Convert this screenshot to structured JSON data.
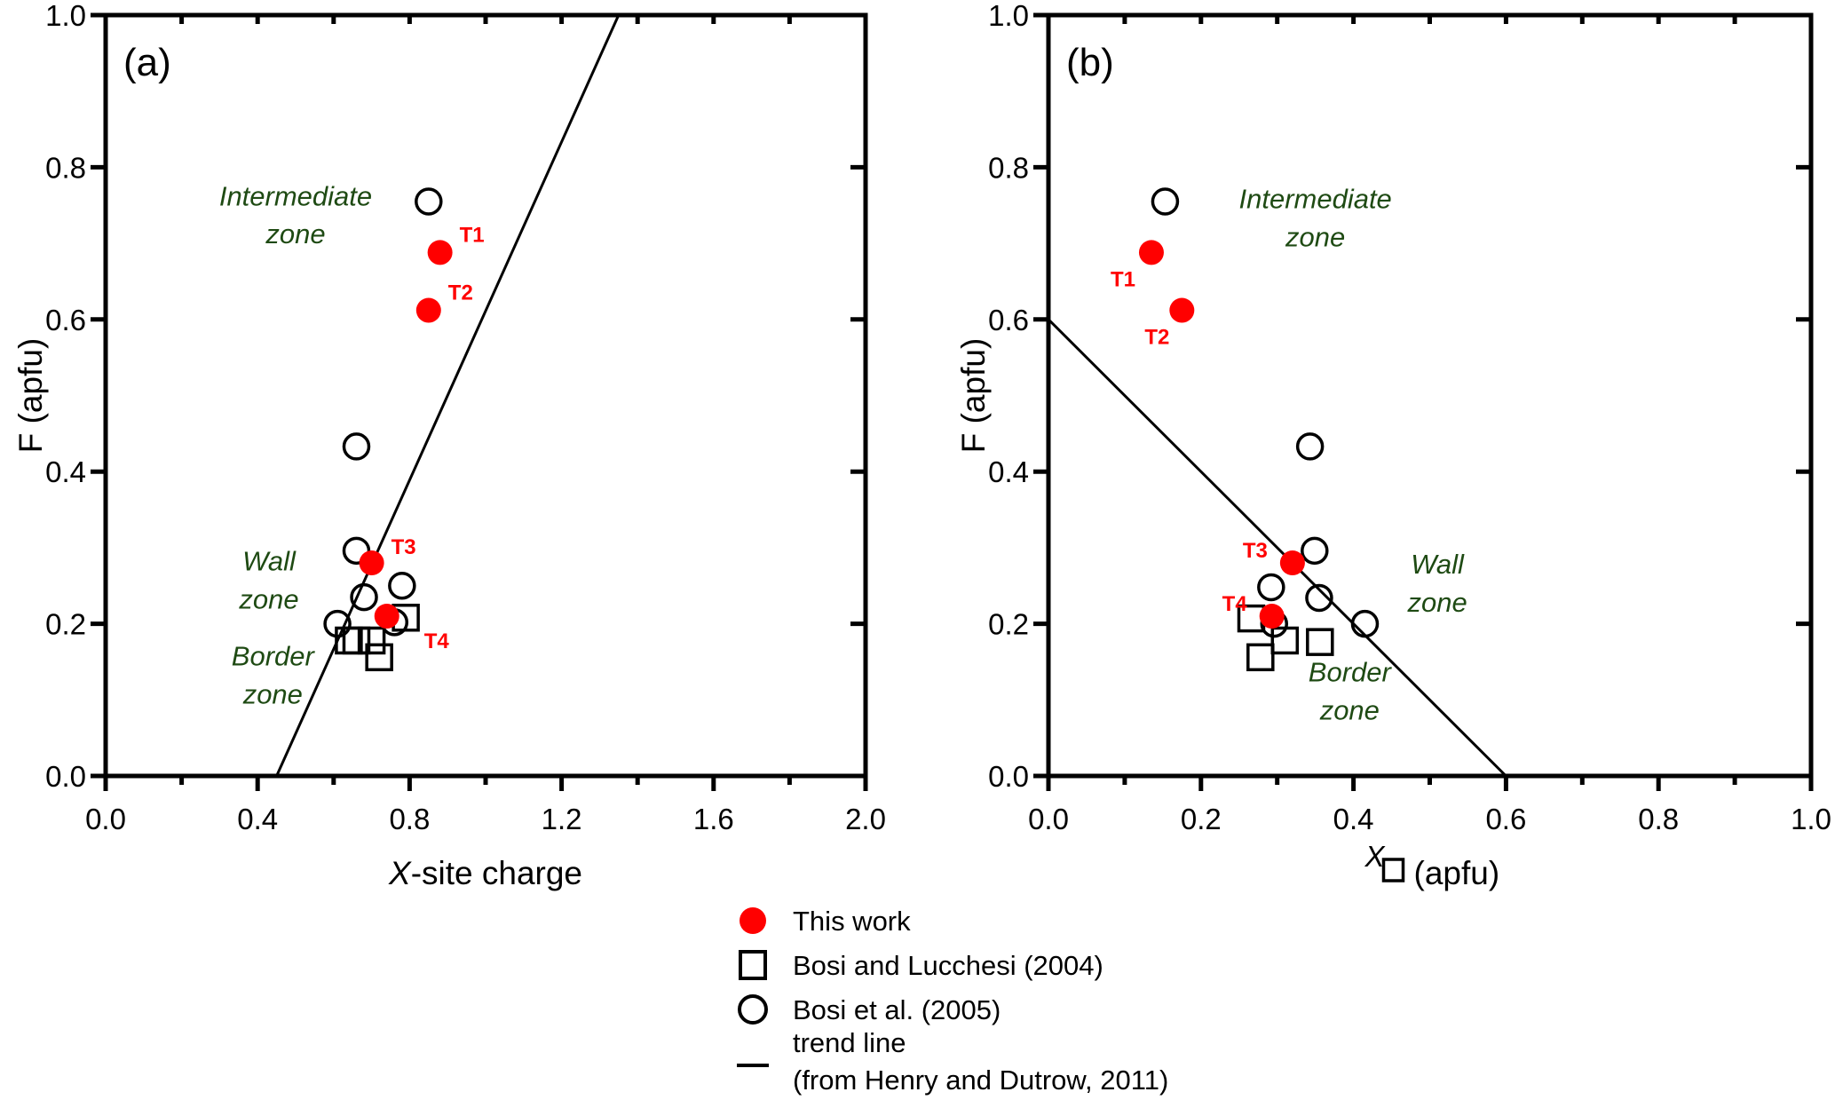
{
  "chart_data": [
    {
      "type": "scatter",
      "panel": "(a)",
      "xlabel_italic": "X",
      "xlabel_rest": "-site charge",
      "ylabel": "F (apfu)",
      "xlim": [
        0.0,
        2.0
      ],
      "ylim": [
        0.0,
        1.0
      ],
      "xticks": [
        "0.0",
        "0.4",
        "0.8",
        "1.2",
        "1.6",
        "2.0"
      ],
      "yticks": [
        "0.0",
        "0.2",
        "0.4",
        "0.6",
        "0.8",
        "1.0"
      ],
      "grid": false,
      "series": [
        {
          "name": "This work",
          "marker": "filled-circle",
          "color": "#ff0000",
          "points": [
            {
              "x": 0.88,
              "y": 0.688,
              "label": "T1"
            },
            {
              "x": 0.85,
              "y": 0.612,
              "label": "T2"
            },
            {
              "x": 0.7,
              "y": 0.28,
              "label": "T3"
            },
            {
              "x": 0.74,
              "y": 0.21,
              "label": "T4"
            }
          ]
        },
        {
          "name": "Bosi and Lucchesi (2004)",
          "marker": "open-square",
          "color": "#000000",
          "points": [
            {
              "x": 0.64,
              "y": 0.178
            },
            {
              "x": 0.7,
              "y": 0.178
            },
            {
              "x": 0.72,
              "y": 0.156
            },
            {
              "x": 0.79,
              "y": 0.208
            },
            {
              "x": 0.66,
              "y": 0.178
            }
          ]
        },
        {
          "name": "Bosi et al. (2005)",
          "marker": "open-circle",
          "color": "#000000",
          "points": [
            {
              "x": 0.85,
              "y": 0.755
            },
            {
              "x": 0.66,
              "y": 0.433
            },
            {
              "x": 0.66,
              "y": 0.296
            },
            {
              "x": 0.78,
              "y": 0.25
            },
            {
              "x": 0.68,
              "y": 0.235
            },
            {
              "x": 0.61,
              "y": 0.2
            },
            {
              "x": 0.76,
              "y": 0.202
            }
          ]
        },
        {
          "name": "trend line",
          "marker": "line",
          "color": "#000000",
          "points": [
            {
              "x": 0.45,
              "y": 0.0
            },
            {
              "x": 1.35,
              "y": 1.0
            }
          ]
        }
      ],
      "annotations": [
        {
          "text": "Intermediate",
          "x": 0.5,
          "y": 0.75
        },
        {
          "text": "zone",
          "x": 0.5,
          "y": 0.7
        },
        {
          "text": "Wall",
          "x": 0.43,
          "y": 0.27
        },
        {
          "text": "zone",
          "x": 0.43,
          "y": 0.22
        },
        {
          "text": "Border",
          "x": 0.44,
          "y": 0.145
        },
        {
          "text": "zone",
          "x": 0.44,
          "y": 0.095
        }
      ]
    },
    {
      "type": "scatter",
      "panel": "(b)",
      "xlabel_super": "X",
      "xlabel_rest": "(apfu)",
      "ylabel": "F (apfu)",
      "xlim": [
        0.0,
        1.0
      ],
      "ylim": [
        0.0,
        1.0
      ],
      "xticks": [
        "0.0",
        "0.2",
        "0.4",
        "0.6",
        "0.8",
        "1.0"
      ],
      "yticks": [
        "0.0",
        "0.2",
        "0.4",
        "0.6",
        "0.8",
        "1.0"
      ],
      "grid": false,
      "series": [
        {
          "name": "This work",
          "marker": "filled-circle",
          "color": "#ff0000",
          "points": [
            {
              "x": 0.135,
              "y": 0.688,
              "label": "T1"
            },
            {
              "x": 0.175,
              "y": 0.612,
              "label": "T2"
            },
            {
              "x": 0.32,
              "y": 0.28,
              "label": "T3"
            },
            {
              "x": 0.293,
              "y": 0.21,
              "label": "T4"
            }
          ]
        },
        {
          "name": "Bosi and Lucchesi (2004)",
          "marker": "open-square",
          "color": "#000000",
          "points": [
            {
              "x": 0.266,
              "y": 0.207
            },
            {
              "x": 0.278,
              "y": 0.156
            },
            {
              "x": 0.31,
              "y": 0.178
            },
            {
              "x": 0.356,
              "y": 0.176
            }
          ]
        },
        {
          "name": "Bosi et al. (2005)",
          "marker": "open-circle",
          "color": "#000000",
          "points": [
            {
              "x": 0.153,
              "y": 0.755
            },
            {
              "x": 0.343,
              "y": 0.433
            },
            {
              "x": 0.349,
              "y": 0.296
            },
            {
              "x": 0.292,
              "y": 0.248
            },
            {
              "x": 0.355,
              "y": 0.234
            },
            {
              "x": 0.296,
              "y": 0.2
            },
            {
              "x": 0.415,
              "y": 0.2
            }
          ]
        },
        {
          "name": "trend line",
          "marker": "line",
          "color": "#000000",
          "points": [
            {
              "x": 0.0,
              "y": 0.6
            },
            {
              "x": 0.6,
              "y": 0.0
            }
          ]
        }
      ],
      "annotations": [
        {
          "text": "Intermediate",
          "x": 0.35,
          "y": 0.746
        },
        {
          "text": "zone",
          "x": 0.35,
          "y": 0.696
        },
        {
          "text": "Wall",
          "x": 0.51,
          "y": 0.266
        },
        {
          "text": "zone",
          "x": 0.51,
          "y": 0.216
        },
        {
          "text": "Border",
          "x": 0.395,
          "y": 0.124
        },
        {
          "text": "zone",
          "x": 0.395,
          "y": 0.074
        }
      ]
    }
  ],
  "legend": {
    "placement": "bottom-center",
    "items": [
      {
        "marker": "filled-circle",
        "label": "This work"
      },
      {
        "marker": "open-square",
        "label": "Bosi and Lucchesi (2004)"
      },
      {
        "marker": "open-circle",
        "label": "Bosi et al. (2005)"
      },
      {
        "marker": "line",
        "label": "trend line",
        "label2": "(from Henry and Dutrow, 2011)"
      }
    ]
  }
}
